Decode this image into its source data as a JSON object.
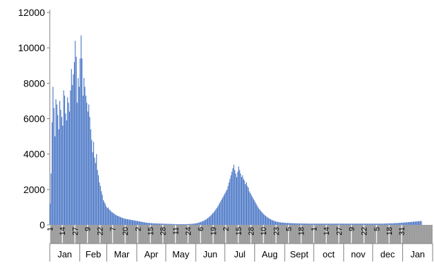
{
  "colors": {
    "bar": "#4472C4",
    "band": "#a6a6a6",
    "axis": "#7f7f7f",
    "text": "#000000"
  },
  "chart_data": {
    "type": "bar",
    "ylim": [
      0,
      12000
    ],
    "y_ticks": [
      0,
      2000,
      4000,
      6000,
      8000,
      10000,
      12000
    ],
    "x_range_days": [
      1,
      397
    ],
    "months": [
      {
        "label": "Jan",
        "start": 1,
        "end": 32
      },
      {
        "label": "Feb",
        "start": 32,
        "end": 60
      },
      {
        "label": "Mar",
        "start": 60,
        "end": 91
      },
      {
        "label": "Apr",
        "start": 91,
        "end": 121
      },
      {
        "label": "May",
        "start": 121,
        "end": 152
      },
      {
        "label": "Jun",
        "start": 152,
        "end": 182
      },
      {
        "label": "Jul",
        "start": 182,
        "end": 213
      },
      {
        "label": "Aug",
        "start": 213,
        "end": 244
      },
      {
        "label": "Sept",
        "start": 244,
        "end": 274
      },
      {
        "label": "oct",
        "start": 274,
        "end": 305
      },
      {
        "label": "nov",
        "start": 305,
        "end": 335
      },
      {
        "label": "dec",
        "start": 335,
        "end": 366
      },
      {
        "label": "Jan",
        "start": 366,
        "end": 397
      }
    ],
    "day_ticks": [
      {
        "day": 1,
        "label": "1"
      },
      {
        "day": 14,
        "label": "14"
      },
      {
        "day": 27,
        "label": "27"
      },
      {
        "day": 40,
        "label": "9"
      },
      {
        "day": 53,
        "label": "22"
      },
      {
        "day": 66,
        "label": "7"
      },
      {
        "day": 79,
        "label": "20"
      },
      {
        "day": 92,
        "label": "2"
      },
      {
        "day": 105,
        "label": "15"
      },
      {
        "day": 118,
        "label": "28"
      },
      {
        "day": 131,
        "label": "11"
      },
      {
        "day": 144,
        "label": "24"
      },
      {
        "day": 157,
        "label": "6"
      },
      {
        "day": 170,
        "label": "19"
      },
      {
        "day": 183,
        "label": "2"
      },
      {
        "day": 196,
        "label": "15"
      },
      {
        "day": 209,
        "label": "28"
      },
      {
        "day": 222,
        "label": "10"
      },
      {
        "day": 235,
        "label": "23"
      },
      {
        "day": 248,
        "label": "5"
      },
      {
        "day": 261,
        "label": "18"
      },
      {
        "day": 274,
        "label": "1"
      },
      {
        "day": 287,
        "label": "14"
      },
      {
        "day": 300,
        "label": "27"
      },
      {
        "day": 313,
        "label": "9"
      },
      {
        "day": 326,
        "label": "22"
      },
      {
        "day": 339,
        "label": "5"
      },
      {
        "day": 352,
        "label": "18"
      },
      {
        "day": 365,
        "label": "31"
      }
    ],
    "series": [
      {
        "start_day": 1,
        "values": [
          1200,
          2900,
          5800,
          7800,
          6600,
          5000,
          7100,
          6800,
          6200,
          5400,
          7000,
          6500,
          6100,
          5600,
          7600,
          7300,
          6300,
          5900,
          7200,
          6900,
          6400,
          7600,
          8800,
          7900,
          8500,
          9200,
          10400,
          9500,
          6900,
          8300,
          7800,
          9400,
          10700,
          9400,
          7300,
          8300,
          7800,
          7300,
          6900,
          6400,
          6800,
          6100,
          5400,
          4800,
          4100,
          4700,
          3800,
          3500,
          4000,
          3100,
          2800,
          2400,
          2200,
          1900,
          1700,
          1400,
          1300,
          1200,
          1050,
          950,
          980,
          880,
          830,
          760,
          720,
          680,
          640,
          600,
          560,
          530,
          510,
          480,
          460,
          430,
          410,
          390,
          370,
          350,
          340,
          330,
          320,
          310,
          300,
          290,
          280,
          270,
          260,
          250,
          240,
          230,
          220,
          210,
          200,
          190,
          180,
          170,
          160,
          150,
          140,
          130,
          120,
          115,
          110,
          105,
          100,
          96,
          92,
          88,
          85,
          82,
          80,
          78,
          76,
          74,
          72,
          70,
          68,
          66,
          64,
          62,
          60,
          58,
          56,
          54,
          52,
          50,
          48,
          47,
          46,
          45,
          44,
          43,
          42,
          41,
          40,
          40,
          40,
          40,
          40,
          41,
          42,
          43,
          44,
          45,
          48,
          52,
          56,
          60,
          66,
          72,
          80,
          90,
          100,
          115,
          130,
          150,
          170,
          190,
          210,
          240,
          270,
          300,
          340,
          380,
          420,
          470,
          520,
          580,
          640,
          700,
          770,
          850,
          930,
          1000,
          1100,
          1200,
          1300,
          1400,
          1500,
          1600,
          1700,
          1800,
          1900,
          2000,
          2200,
          2400,
          2600,
          2800,
          3000,
          3200,
          3400,
          3100,
          2900,
          2700,
          3000,
          3300,
          3100,
          2900,
          2700,
          2800,
          2600,
          2500,
          2300,
          2400,
          2200,
          2100,
          1900,
          1800,
          1700,
          1600,
          1500,
          1400,
          1300,
          1200,
          1100,
          1000,
          920,
          850,
          780,
          720,
          660,
          600,
          550,
          500,
          460,
          420,
          380,
          350,
          320,
          290,
          260,
          240,
          220,
          200,
          185,
          170,
          160,
          150,
          140,
          135,
          130,
          125,
          120,
          115,
          110,
          108,
          105,
          102,
          100,
          98,
          96,
          94,
          92,
          90,
          88,
          86,
          84,
          82,
          80,
          80,
          80,
          79,
          78,
          77,
          76,
          75,
          74,
          73,
          72,
          71,
          70,
          70,
          70,
          70,
          70,
          70,
          70,
          70,
          70,
          70,
          70,
          70,
          70,
          70,
          70,
          70,
          70,
          70,
          70,
          70,
          70,
          70,
          70,
          70,
          70,
          70,
          70,
          70,
          70,
          70,
          70,
          70,
          70,
          70,
          70,
          70,
          70,
          70,
          70,
          70,
          70,
          70,
          70,
          70,
          70,
          70,
          70,
          70,
          70,
          70,
          70,
          70,
          70,
          70,
          70,
          70,
          70,
          70,
          70,
          70,
          70,
          70,
          70,
          70,
          70,
          70,
          70,
          70,
          70,
          70,
          70,
          70,
          70,
          70,
          70,
          72,
          74,
          76,
          78,
          80,
          82,
          84,
          86,
          88,
          90,
          92,
          95,
          98,
          100,
          103,
          106,
          110,
          114,
          118,
          122,
          126,
          130,
          135,
          140,
          145,
          150,
          155,
          160,
          165,
          170,
          175,
          180,
          185,
          190,
          195,
          200,
          205,
          210,
          215,
          220
        ]
      }
    ]
  }
}
